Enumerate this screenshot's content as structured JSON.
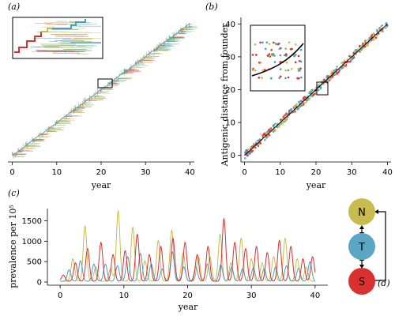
{
  "panels": {
    "a": "(a)",
    "b": "(b)",
    "c": "(c)",
    "d": "(d)"
  },
  "chart_data": [
    {
      "id": "a",
      "type": "line",
      "xlabel": "year",
      "ylabel": "",
      "xlim": [
        -1,
        41
      ],
      "xticks": [
        0,
        10,
        20,
        30,
        40
      ],
      "xtick_labels": [
        "0",
        "10",
        "20",
        "30",
        "40"
      ],
      "trunk_start": [
        0,
        0
      ],
      "trunk_end": [
        40,
        40
      ],
      "inset": "zoom on phylogeny around year 21–23",
      "colors": [
        "#d93030",
        "#4a9ec0",
        "#c8bc50",
        "#6ba54a"
      ]
    },
    {
      "id": "b",
      "type": "scatter",
      "xlabel": "year",
      "ylabel": "Antigenic distance from founder",
      "xlim": [
        -1,
        41
      ],
      "ylim": [
        -2,
        42
      ],
      "xticks": [
        0,
        10,
        20,
        30,
        40
      ],
      "yticks": [
        0,
        10,
        20,
        30,
        40
      ],
      "xtick_labels": [
        "0",
        "10",
        "20",
        "30",
        "40"
      ],
      "ytick_labels": [
        "0",
        "10",
        "20",
        "30",
        "40"
      ],
      "fit_line": [
        [
          0,
          0
        ],
        [
          40,
          40
        ]
      ],
      "series_colors": [
        "#d93030",
        "#4a9ec0",
        "#c8bc50"
      ]
    },
    {
      "id": "c",
      "type": "line",
      "xlabel": "year",
      "ylabel": "prevalence per 10⁵",
      "xlim": [
        -2,
        42
      ],
      "ylim": [
        0,
        1800
      ],
      "xticks": [
        0,
        10,
        20,
        30,
        40
      ],
      "yticks": [
        0,
        500,
        1000,
        1500
      ],
      "xtick_labels": [
        "0",
        "10",
        "20",
        "30",
        "40"
      ],
      "ytick_labels": [
        "0",
        "500",
        "1000",
        "1500"
      ],
      "series": [
        {
          "color": "#c8bc50",
          "peaks": [
            [
              2.0,
              550
            ],
            [
              3.9,
              1350
            ],
            [
              5.6,
              350
            ],
            [
              7.9,
              300
            ],
            [
              9.1,
              1720
            ],
            [
              11.4,
              1320
            ],
            [
              13.3,
              500
            ],
            [
              15.4,
              1000
            ],
            [
              17.5,
              1250
            ],
            [
              19.3,
              700
            ],
            [
              21.7,
              600
            ],
            [
              23.5,
              600
            ],
            [
              25.1,
              1150
            ],
            [
              26.8,
              450
            ],
            [
              28.4,
              1050
            ],
            [
              30.0,
              550
            ],
            [
              31.7,
              450
            ],
            [
              33.5,
              600
            ],
            [
              35.3,
              1050
            ],
            [
              37.2,
              550
            ],
            [
              38.6,
              350
            ]
          ]
        },
        {
          "color": "#4a9ec0",
          "peaks": [
            [
              1.4,
              280
            ],
            [
              3.2,
              500
            ],
            [
              5.3,
              420
            ],
            [
              7.1,
              420
            ],
            [
              9.0,
              380
            ],
            [
              10.6,
              600
            ],
            [
              12.6,
              680
            ],
            [
              14.3,
              420
            ],
            [
              16.0,
              300
            ],
            [
              17.6,
              720
            ],
            [
              19.4,
              350
            ],
            [
              21.3,
              350
            ],
            [
              23.1,
              420
            ],
            [
              25.2,
              400
            ],
            [
              26.9,
              350
            ],
            [
              28.6,
              300
            ],
            [
              30.3,
              320
            ],
            [
              32.0,
              300
            ],
            [
              33.8,
              350
            ],
            [
              35.5,
              380
            ],
            [
              37.4,
              320
            ],
            [
              39.2,
              480
            ]
          ]
        },
        {
          "color": "#d93030",
          "peaks": [
            [
              0.5,
              150
            ],
            [
              2.4,
              450
            ],
            [
              4.3,
              800
            ],
            [
              6.4,
              950
            ],
            [
              8.3,
              650
            ],
            [
              10.2,
              750
            ],
            [
              12.1,
              1150
            ],
            [
              14.0,
              650
            ],
            [
              15.8,
              850
            ],
            [
              17.7,
              1050
            ],
            [
              19.6,
              950
            ],
            [
              21.5,
              650
            ],
            [
              23.2,
              850
            ],
            [
              25.7,
              1530
            ],
            [
              27.4,
              950
            ],
            [
              29.1,
              800
            ],
            [
              30.8,
              850
            ],
            [
              32.5,
              700
            ],
            [
              34.4,
              1000
            ],
            [
              36.2,
              850
            ],
            [
              38.1,
              550
            ],
            [
              39.6,
              600
            ]
          ]
        }
      ]
    }
  ],
  "diagram": {
    "nodes": [
      {
        "id": "N",
        "label": "N",
        "color": "#c8bc50"
      },
      {
        "id": "T",
        "label": "T",
        "color": "#5aa6c4"
      },
      {
        "id": "S",
        "label": "S",
        "color": "#d93030"
      }
    ]
  }
}
